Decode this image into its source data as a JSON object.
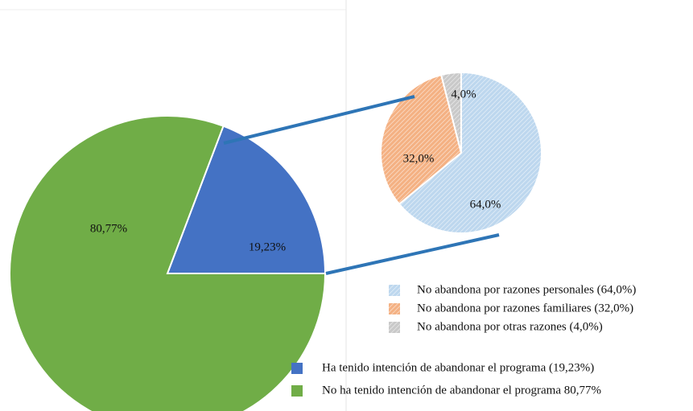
{
  "chart_data": [
    {
      "type": "pie",
      "categories": [
        "Ha tenido intención de abandonar el programa (19,23%)",
        "No ha tenido intención de abandonar el programa 80,77%"
      ],
      "values": [
        19.23,
        80.77
      ],
      "value_labels": [
        "19,23%",
        "80,77%"
      ],
      "colors": [
        "#4472c4",
        "#70ad47"
      ]
    },
    {
      "type": "pie",
      "categories": [
        "No abandona por razones personales (64,0%)",
        "No abandona por razones familiares  (32,0%)",
        "No abandona por otras razones (4,0%)"
      ],
      "values": [
        64.0,
        32.0,
        4.0
      ],
      "value_labels": [
        "64,0%",
        "32,0%",
        "4,0%"
      ],
      "colors": [
        "#bdd7ee",
        "#f4b183",
        "#c9c9c9"
      ],
      "hatched": true
    }
  ]
}
